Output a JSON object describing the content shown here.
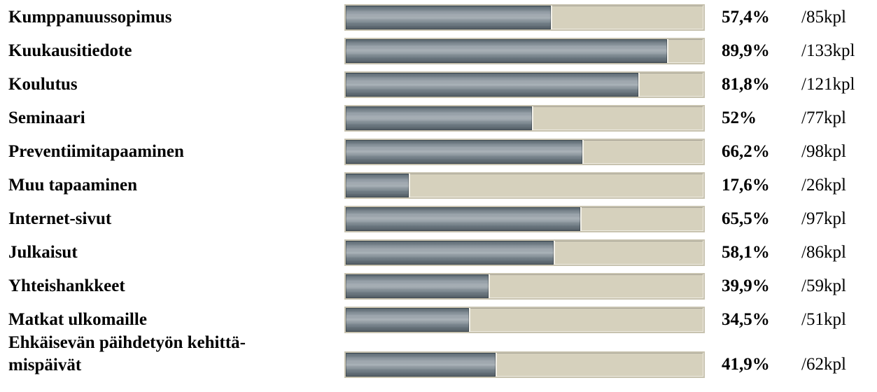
{
  "chart_data": {
    "type": "bar",
    "orientation": "horizontal",
    "categories": [
      "Kumppanuussopimus",
      "Kuukausitiedote",
      "Koulutus",
      "Seminaari",
      "Preventiimitapaaminen",
      "Muu tapaaminen",
      "Internet-sivut",
      "Julkaisut",
      "Yhteishankkeet",
      "Matkat ulkomaille",
      "Ehkäisevän päihdetyön kehittä-\nmispäivät"
    ],
    "values": [
      57.4,
      89.9,
      81.8,
      52,
      66.2,
      17.6,
      65.5,
      58.1,
      39.9,
      34.5,
      41.9
    ],
    "value_labels": [
      "57,4%",
      "89,9%",
      "81,8%",
      "52%",
      "66,2%",
      "17,6%",
      "65,5%",
      "58,1%",
      "39,9%",
      "34,5%",
      "41,9%"
    ],
    "count_labels": [
      "/85kpl",
      "/133kpl",
      "/121kpl",
      "/77kpl",
      "/98kpl",
      "/26kpl",
      "/97kpl",
      "/86kpl",
      "/59kpl",
      "/51kpl",
      "/62kpl"
    ],
    "xlim": [
      0,
      100
    ],
    "grid": false,
    "colors": {
      "bar": "#7d8890",
      "track": "#d6d1bd"
    }
  }
}
